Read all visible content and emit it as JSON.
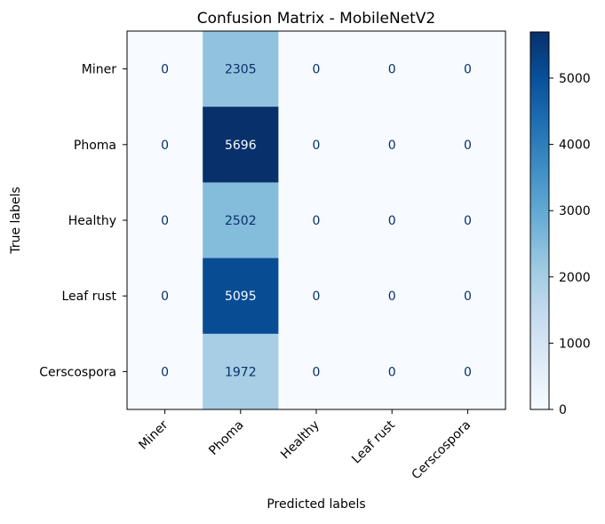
{
  "chart_data": {
    "type": "heatmap",
    "title": "Confusion Matrix - MobileNetV2",
    "xlabel": "Predicted labels",
    "ylabel": "True labels",
    "x_categories": [
      "Miner",
      "Phoma",
      "Healthy",
      "Leaf rust",
      "Cerscospora"
    ],
    "y_categories": [
      "Miner",
      "Phoma",
      "Healthy",
      "Leaf rust",
      "Cerscospora"
    ],
    "values": [
      [
        0,
        2305,
        0,
        0,
        0
      ],
      [
        0,
        5696,
        0,
        0,
        0
      ],
      [
        0,
        2502,
        0,
        0,
        0
      ],
      [
        0,
        5095,
        0,
        0,
        0
      ],
      [
        0,
        1972,
        0,
        0,
        0
      ]
    ],
    "colorscale": "Blues",
    "color_range": [
      0,
      5696
    ],
    "colorbar_ticks": [
      0,
      1000,
      2000,
      3000,
      4000,
      5000
    ],
    "grid": false
  }
}
